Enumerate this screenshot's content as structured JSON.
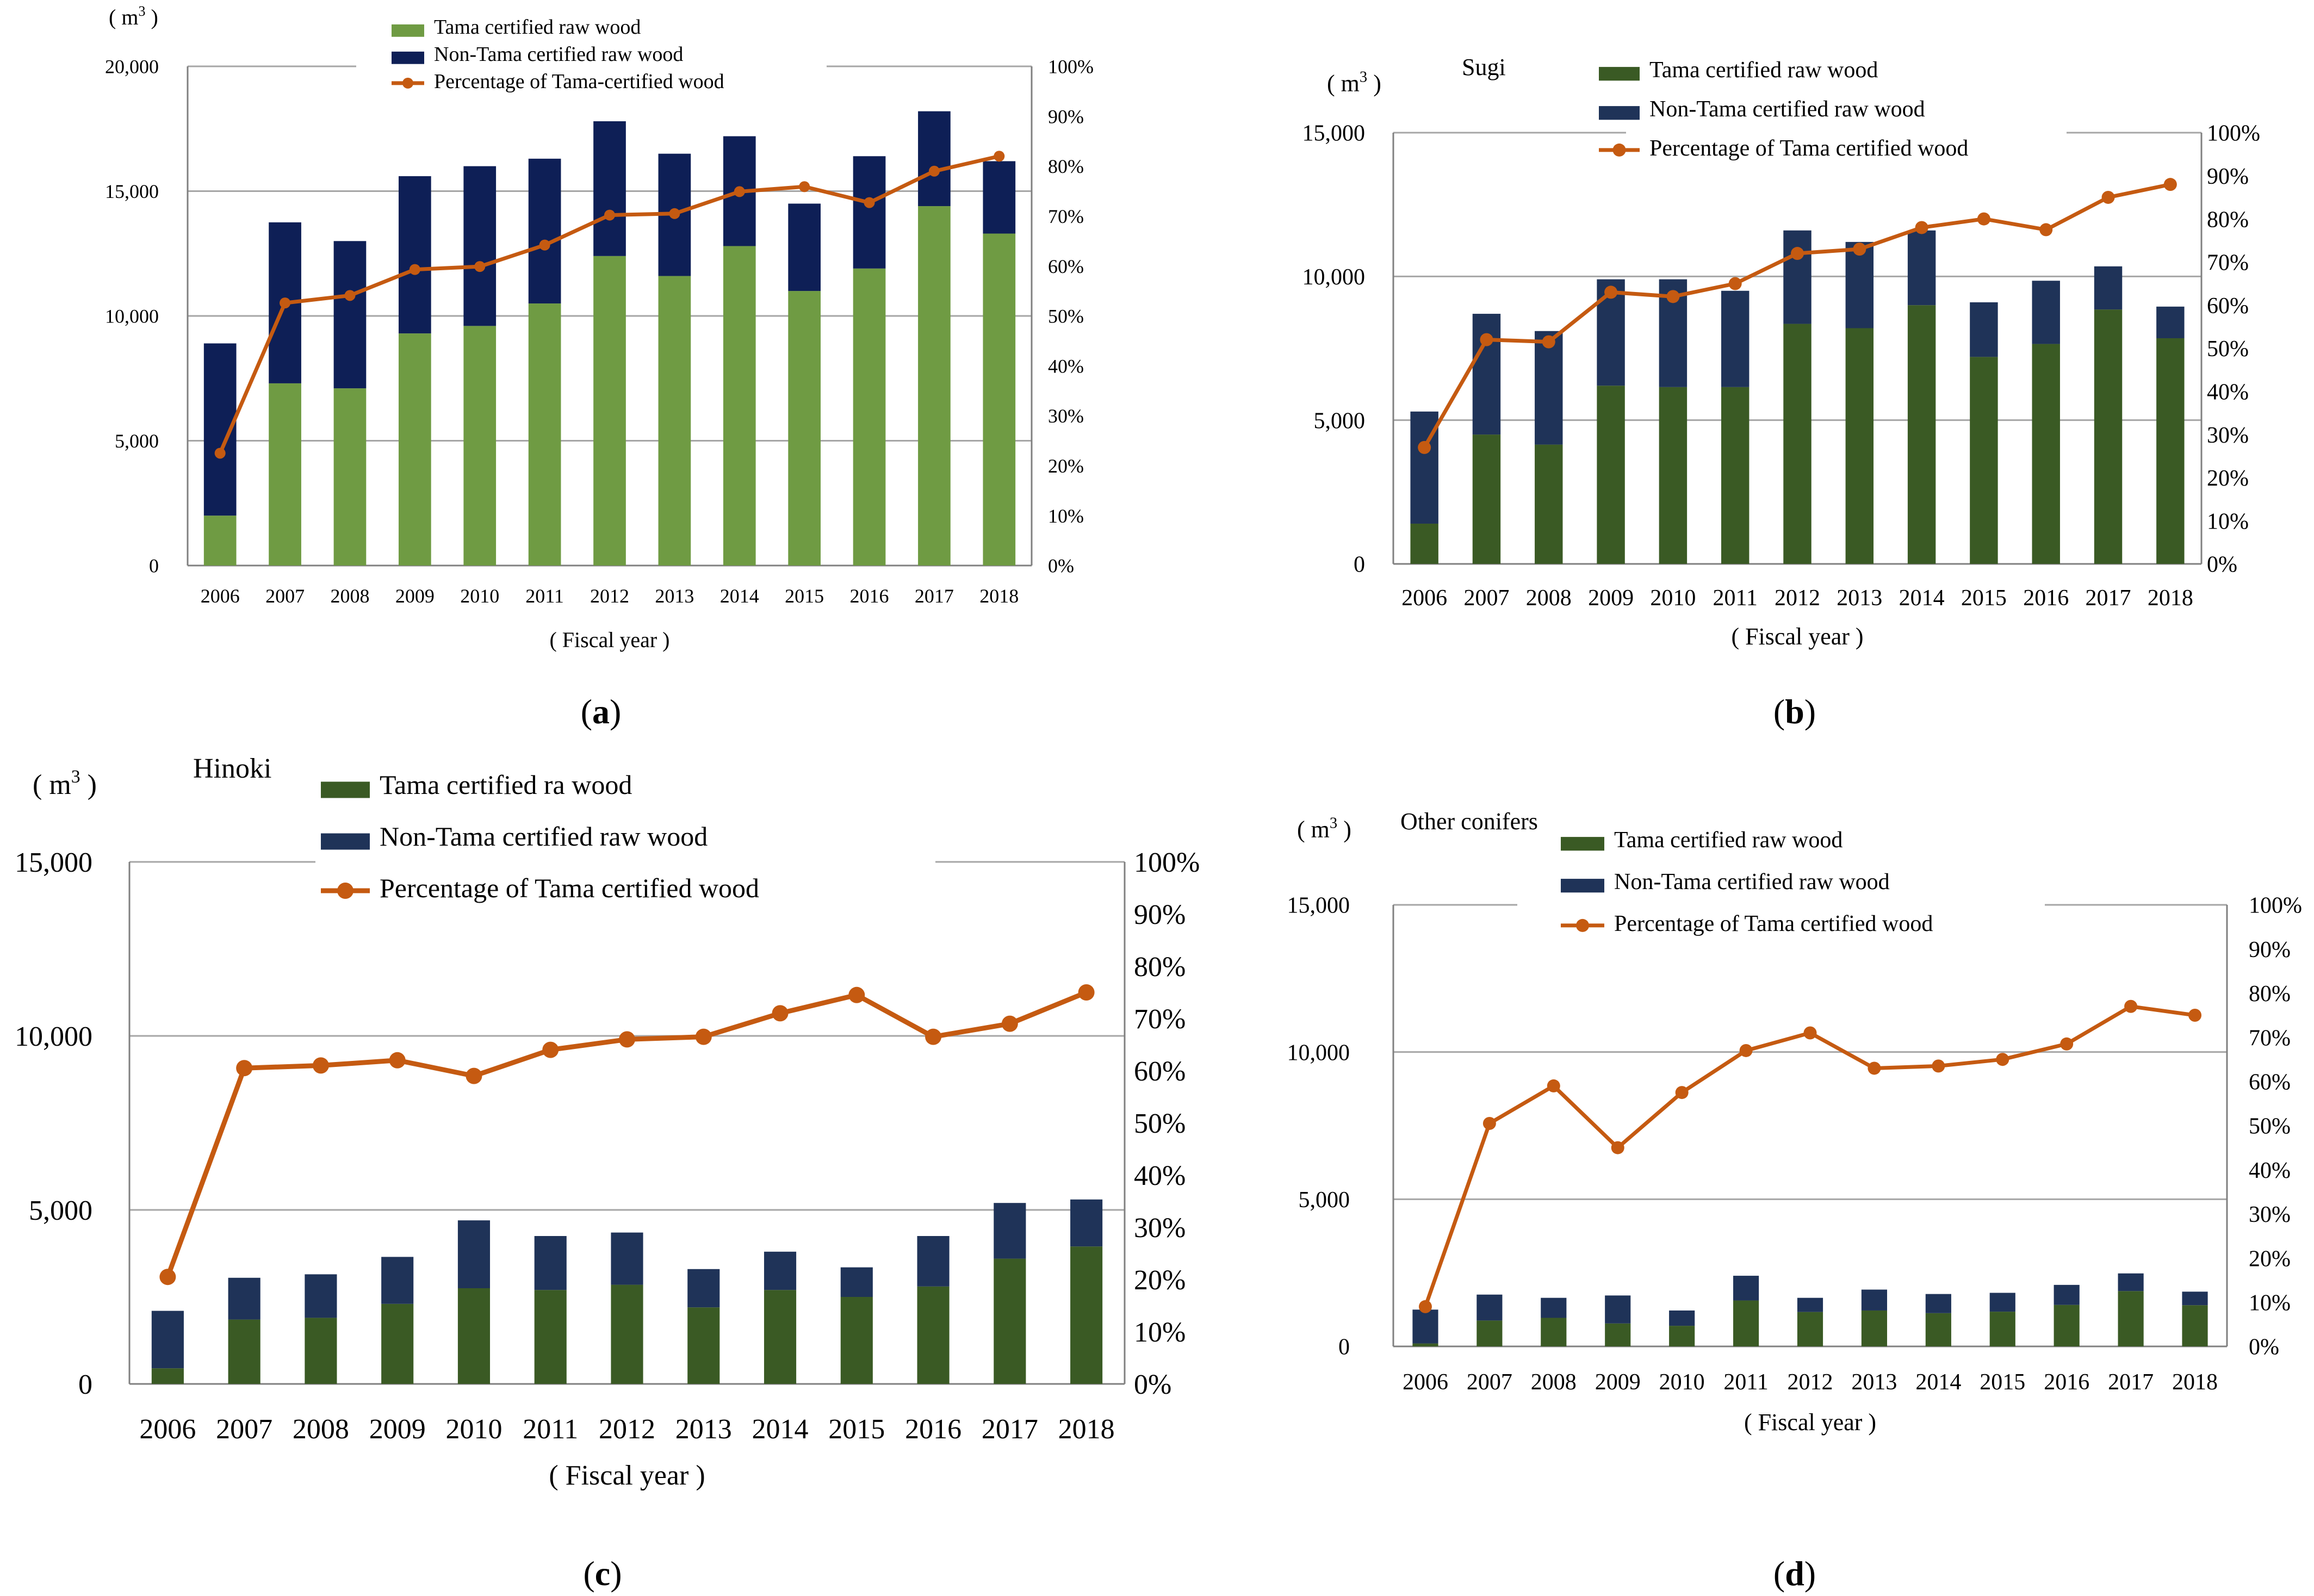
{
  "figure": {
    "panels": [
      "a",
      "b",
      "c",
      "d"
    ]
  },
  "colors": {
    "tama_a": "#6f9b43",
    "tama": "#3a5a24",
    "non_tama": "#1f3358",
    "non_tama_a": "#0e1f56",
    "pct": "#c55a11",
    "grid": "#a6a6a6",
    "axis": "#808080",
    "text": "#000000"
  },
  "chart_data": [
    {
      "panel": "a",
      "type": "bar",
      "stacked": true,
      "panel_label_prefix": "(",
      "panel_label": "a",
      "panel_label_suffix": ")",
      "title": "",
      "unit_open": "( m",
      "unit_sup": "3",
      "unit_close": ")",
      "xlabel": "( Fiscal year )",
      "categories": [
        "2006",
        "2007",
        "2008",
        "2009",
        "2010",
        "2011",
        "2012",
        "2013",
        "2014",
        "2015",
        "2016",
        "2017",
        "2018"
      ],
      "series": [
        {
          "name": "Tama certified raw wood",
          "kind": "bar",
          "values": [
            2000,
            7300,
            7100,
            9300,
            9600,
            10500,
            12400,
            11600,
            12800,
            11000,
            11900,
            14400,
            13300
          ]
        },
        {
          "name": "Non-Tama certified raw wood",
          "kind": "bar",
          "values": [
            6900,
            6450,
            5900,
            6300,
            6400,
            5800,
            5400,
            4900,
            4400,
            3500,
            4500,
            3800,
            2900
          ]
        },
        {
          "name": "Percentage of Tama-certified wood",
          "kind": "line",
          "axis": "right",
          "values": [
            22.5,
            52.6,
            54.1,
            59.3,
            59.9,
            64.2,
            70.2,
            70.5,
            74.9,
            75.9,
            72.7,
            79.0,
            82.0
          ]
        }
      ],
      "ylim": [
        0,
        20000
      ],
      "yticks": [
        "0",
        "5,000",
        "10,000",
        "15,000",
        "20,000"
      ],
      "y2lim": [
        0,
        100
      ],
      "y2ticks": [
        "0%",
        "10%",
        "20%",
        "30%",
        "40%",
        "50%",
        "60%",
        "70%",
        "80%",
        "90%",
        "100%"
      ],
      "grid": true,
      "legend": "top-center"
    },
    {
      "panel": "b",
      "type": "bar",
      "stacked": true,
      "panel_label_prefix": "(",
      "panel_label": "b",
      "panel_label_suffix": ")",
      "title": "Sugi",
      "unit_open": "( m",
      "unit_sup": "3",
      "unit_close": ")",
      "xlabel": "( Fiscal year )",
      "categories": [
        "2006",
        "2007",
        "2008",
        "2009",
        "2010",
        "2011",
        "2012",
        "2013",
        "2014",
        "2015",
        "2016",
        "2017",
        "2018"
      ],
      "series": [
        {
          "name": "Tama certified raw wood",
          "kind": "bar",
          "values": [
            1400,
            4500,
            4150,
            6200,
            6150,
            6150,
            8350,
            8200,
            9000,
            7200,
            7650,
            8850,
            7850
          ]
        },
        {
          "name": "Non-Tama certified raw wood",
          "kind": "bar",
          "values": [
            3900,
            4200,
            3950,
            3700,
            3750,
            3350,
            3250,
            3000,
            2600,
            1900,
            2200,
            1500,
            1100
          ]
        },
        {
          "name": "Percentage of Tama certified wood",
          "kind": "line",
          "axis": "right",
          "values": [
            27,
            52,
            51.5,
            63,
            62,
            65,
            72,
            73,
            78,
            80,
            77.5,
            85,
            88
          ]
        }
      ],
      "ylim": [
        0,
        15000
      ],
      "yticks": [
        "0",
        "5,000",
        "10,000",
        "15,000"
      ],
      "y2lim": [
        0,
        100
      ],
      "y2ticks": [
        "0%",
        "10%",
        "20%",
        "30%",
        "40%",
        "50%",
        "60%",
        "70%",
        "80%",
        "90%",
        "100%"
      ],
      "grid": true,
      "legend": "top-center"
    },
    {
      "panel": "c",
      "type": "bar",
      "stacked": true,
      "panel_label_prefix": "(",
      "panel_label": "c",
      "panel_label_suffix": ")",
      "title": "Hinoki",
      "unit_open": "( m",
      "unit_sup": "3",
      "unit_close": ")",
      "xlabel": "( Fiscal year )",
      "categories": [
        "2006",
        "2007",
        "2008",
        "2009",
        "2010",
        "2011",
        "2012",
        "2013",
        "2014",
        "2015",
        "2016",
        "2017",
        "2018"
      ],
      "series": [
        {
          "name": "Tama certified ra wood",
          "kind": "bar",
          "values": [
            450,
            1850,
            1900,
            2300,
            2750,
            2700,
            2850,
            2200,
            2700,
            2500,
            2800,
            3600,
            3950
          ]
        },
        {
          "name": "Non-Tama certified raw wood",
          "kind": "bar",
          "values": [
            1650,
            1200,
            1250,
            1350,
            1950,
            1550,
            1500,
            1100,
            1100,
            850,
            1450,
            1600,
            1350
          ]
        },
        {
          "name": "Percentage of Tama certified wood",
          "kind": "line",
          "axis": "right",
          "values": [
            20.5,
            60.5,
            61,
            62,
            59,
            64,
            66,
            66.5,
            71,
            74.5,
            66.5,
            69,
            75
          ]
        }
      ],
      "ylim": [
        0,
        15000
      ],
      "yticks": [
        "0",
        "5,000",
        "10,000",
        "15,000"
      ],
      "y2lim": [
        0,
        100
      ],
      "y2ticks": [
        "0%",
        "10%",
        "20%",
        "30%",
        "40%",
        "50%",
        "60%",
        "70%",
        "80%",
        "90%",
        "100%"
      ],
      "grid": true,
      "legend": "top-center"
    },
    {
      "panel": "d",
      "type": "bar",
      "stacked": true,
      "panel_label_prefix": "(",
      "panel_label": "d",
      "panel_label_suffix": ")",
      "title": "Other conifers",
      "unit_open": "( m",
      "unit_sup": "3",
      "unit_close": ")",
      "xlabel": "( Fiscal year )",
      "categories": [
        "2006",
        "2007",
        "2008",
        "2009",
        "2010",
        "2011",
        "2012",
        "2013",
        "2014",
        "2015",
        "2016",
        "2017",
        "2018"
      ],
      "series": [
        {
          "name": "Tama certified raw wood",
          "kind": "bar",
          "values": [
            100,
            880,
            970,
            780,
            700,
            1560,
            1170,
            1220,
            1130,
            1180,
            1410,
            1880,
            1400
          ]
        },
        {
          "name": "Non-Tama certified raw wood",
          "kind": "bar",
          "values": [
            1150,
            880,
            680,
            950,
            520,
            840,
            480,
            710,
            650,
            640,
            680,
            600,
            460
          ]
        },
        {
          "name": "Percentage of Tama certified wood",
          "kind": "line",
          "axis": "right",
          "values": [
            9,
            50.5,
            59,
            45,
            57.5,
            67,
            71,
            63,
            63.5,
            65,
            68.5,
            77,
            75
          ]
        }
      ],
      "ylim": [
        0,
        15000
      ],
      "yticks": [
        "0",
        "5,000",
        "10,000",
        "15,000"
      ],
      "y2lim": [
        0,
        100
      ],
      "y2ticks": [
        "0%",
        "10%",
        "20%",
        "30%",
        "40%",
        "50%",
        "60%",
        "70%",
        "80%",
        "90%",
        "100%"
      ],
      "grid": true,
      "legend": "top-center"
    }
  ]
}
